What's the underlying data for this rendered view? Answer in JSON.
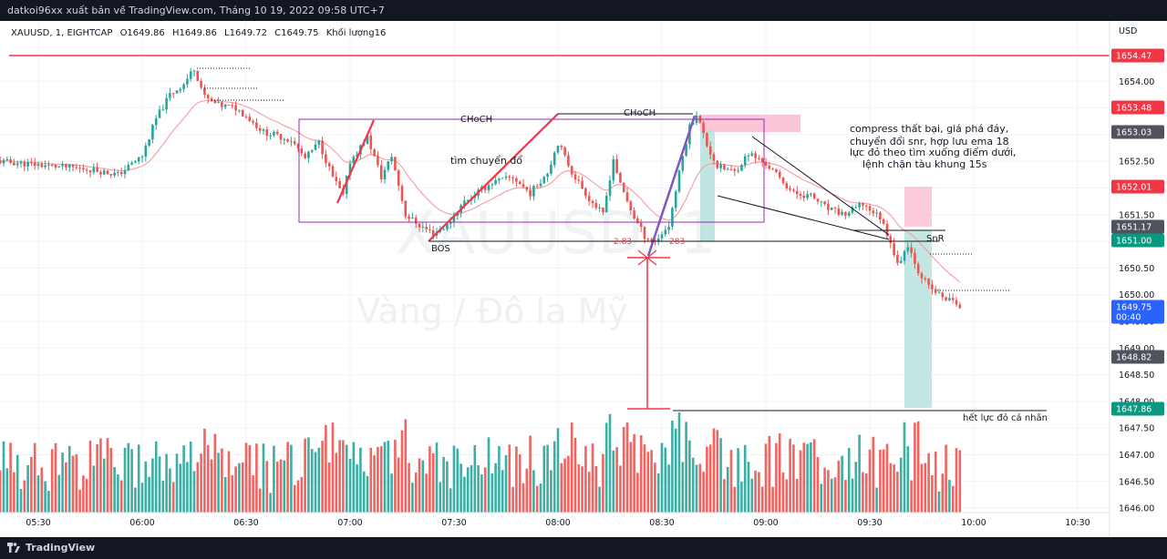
{
  "header": {
    "publish_text": "datkoi96xx xuất bản về TradingView.com, Tháng 10 19, 2022 09:58 UTC+7"
  },
  "footer": {
    "brand": "TradingView"
  },
  "legend": {
    "symbol": "XAUUSD, 1, EIGHTCAP",
    "open": "O1649.86",
    "high": "H1649.86",
    "low": "L1649.72",
    "close": "C1649.75",
    "volume_label": "Khối lượng16"
  },
  "watermark": {
    "symbol": "XAUUSD, 1",
    "description": "Vàng / Đô la Mỹ"
  },
  "axis": {
    "currency": "USD"
  },
  "colors": {
    "up": "#26a69a",
    "down": "#ef5350",
    "ema": "#f4a3a8",
    "box": "#9c27b0",
    "snr": "#f23645"
  },
  "annotations": {
    "choch_left": "CHoCH",
    "choch_right": "CHoCH",
    "bos": "BOS",
    "trend_note": "tìm chuyển đổ",
    "snr": "SnR",
    "measure_left": "2.83",
    "measure_right": "283",
    "note_lines": [
      "compress thất bại, giá phá đáy,",
      " chuyển đổi snr, hợp lưu ema 18",
      "lực đỏ theo tìm xuống điểm dưới,",
      "lệnh chặn tàu khung 15s"
    ],
    "bottom_note": "hết lực đỏ cá nhân"
  },
  "price_tags": [
    {
      "label": "1654.47",
      "color": "#f23645"
    },
    {
      "label": "1653.48",
      "color": "#f23645"
    },
    {
      "label": "1653.03",
      "color": "#50535e"
    },
    {
      "label": "1652.01",
      "color": "#f23645"
    },
    {
      "label": "1651.17",
      "color": "#50535e"
    },
    {
      "label": "1651.00",
      "color": "#089981"
    },
    {
      "label": "1649.75",
      "color": "#2962ff",
      "sub": "00:40"
    },
    {
      "label": "1648.82",
      "color": "#50535e"
    },
    {
      "label": "1647.86",
      "color": "#089981"
    }
  ],
  "chart_data": {
    "type": "candlestick",
    "symbol": "XAUUSD",
    "interval": "1",
    "y_ticks": [
      "1654.00",
      "1653.50",
      "1653.00",
      "1652.50",
      "1652.00",
      "1651.50",
      "1651.00",
      "1650.50",
      "1650.00",
      "1649.50",
      "1649.00",
      "1648.50",
      "1648.00",
      "1647.50",
      "1647.00",
      "1646.50",
      "1646.00"
    ],
    "x_ticks": [
      "05:30",
      "06:00",
      "06:30",
      "07:00",
      "07:30",
      "08:00",
      "08:30",
      "09:00",
      "09:30",
      "10:00",
      "10:30"
    ],
    "ylim": [
      1645.9,
      1654.85
    ],
    "last_close": 1649.75,
    "close_path": [
      {
        "t": "05:18",
        "p": 1652.5
      },
      {
        "t": "05:27",
        "p": 1652.45
      },
      {
        "t": "05:36",
        "p": 1652.4
      },
      {
        "t": "05:45",
        "p": 1652.35
      },
      {
        "t": "05:53",
        "p": 1652.25
      },
      {
        "t": "06:00",
        "p": 1652.6
      },
      {
        "t": "06:04",
        "p": 1653.3
      },
      {
        "t": "06:08",
        "p": 1653.75
      },
      {
        "t": "06:12",
        "p": 1653.95
      },
      {
        "t": "06:15",
        "p": 1654.25
      },
      {
        "t": "06:18",
        "p": 1653.7
      },
      {
        "t": "06:22",
        "p": 1653.55
      },
      {
        "t": "06:27",
        "p": 1653.5
      },
      {
        "t": "06:30",
        "p": 1653.35
      },
      {
        "t": "06:35",
        "p": 1653.05
      },
      {
        "t": "06:43",
        "p": 1652.9
      },
      {
        "t": "06:47",
        "p": 1652.55
      },
      {
        "t": "06:51",
        "p": 1652.85
      },
      {
        "t": "06:55",
        "p": 1652.2
      },
      {
        "t": "06:58",
        "p": 1651.85
      },
      {
        "t": "07:00",
        "p": 1652.5
      },
      {
        "t": "07:05",
        "p": 1652.95
      },
      {
        "t": "07:09",
        "p": 1652.2
      },
      {
        "t": "07:12",
        "p": 1652.6
      },
      {
        "t": "07:16",
        "p": 1651.5
      },
      {
        "t": "07:20",
        "p": 1651.3
      },
      {
        "t": "07:24",
        "p": 1651.15
      },
      {
        "t": "07:28",
        "p": 1651.3
      },
      {
        "t": "07:33",
        "p": 1651.75
      },
      {
        "t": "07:41",
        "p": 1652.1
      },
      {
        "t": "07:47",
        "p": 1652.2
      },
      {
        "t": "07:52",
        "p": 1651.9
      },
      {
        "t": "07:57",
        "p": 1652.3
      },
      {
        "t": "08:00",
        "p": 1652.85
      },
      {
        "t": "08:04",
        "p": 1652.3
      },
      {
        "t": "08:09",
        "p": 1651.8
      },
      {
        "t": "08:13",
        "p": 1651.5
      },
      {
        "t": "08:16",
        "p": 1652.55
      },
      {
        "t": "08:18",
        "p": 1652.05
      },
      {
        "t": "08:22",
        "p": 1651.45
      },
      {
        "t": "08:25",
        "p": 1651.1
      },
      {
        "t": "08:28",
        "p": 1651.0
      },
      {
        "t": "08:32",
        "p": 1651.3
      },
      {
        "t": "08:36",
        "p": 1652.6
      },
      {
        "t": "08:38",
        "p": 1653.15
      },
      {
        "t": "08:40",
        "p": 1653.4
      },
      {
        "t": "08:43",
        "p": 1652.8
      },
      {
        "t": "08:46",
        "p": 1652.4
      },
      {
        "t": "08:51",
        "p": 1652.3
      },
      {
        "t": "08:55",
        "p": 1652.65
      },
      {
        "t": "09:00",
        "p": 1652.45
      },
      {
        "t": "09:03",
        "p": 1652.25
      },
      {
        "t": "09:08",
        "p": 1651.9
      },
      {
        "t": "09:13",
        "p": 1651.85
      },
      {
        "t": "09:18",
        "p": 1651.6
      },
      {
        "t": "09:23",
        "p": 1651.5
      },
      {
        "t": "09:28",
        "p": 1651.7
      },
      {
        "t": "09:33",
        "p": 1651.45
      },
      {
        "t": "09:36",
        "p": 1651.0
      },
      {
        "t": "09:38",
        "p": 1650.55
      },
      {
        "t": "09:41",
        "p": 1650.95
      },
      {
        "t": "09:44",
        "p": 1650.45
      },
      {
        "t": "09:47",
        "p": 1650.15
      },
      {
        "t": "09:51",
        "p": 1649.95
      },
      {
        "t": "09:55",
        "p": 1649.85
      },
      {
        "t": "09:56",
        "p": 1649.75
      }
    ]
  }
}
